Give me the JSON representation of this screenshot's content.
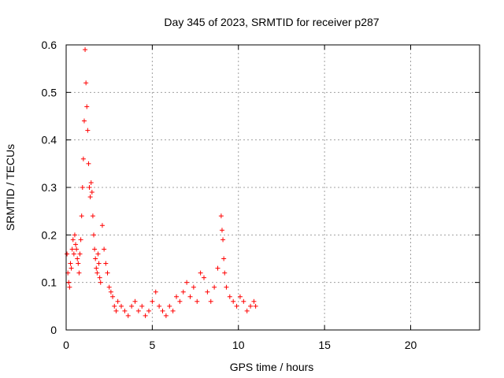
{
  "chart_data": {
    "type": "scatter",
    "title": "Day 345 of 2023, SRMTID for receiver p287",
    "xlabel": "GPS time / hours",
    "ylabel": "SRMTID / TECUs",
    "xlim": [
      0,
      24
    ],
    "ylim": [
      0,
      0.6
    ],
    "xticks": [
      0,
      5,
      10,
      15,
      20
    ],
    "xtick_labels": [
      "0",
      "5",
      "10",
      "15",
      "20"
    ],
    "yticks": [
      0,
      0.1,
      0.2,
      0.3,
      0.4,
      0.5,
      0.6
    ],
    "ytick_labels": [
      "0",
      "0.1",
      "0.2",
      "0.3",
      "0.4",
      "0.5",
      "0.6"
    ],
    "grid": true,
    "marker": "+",
    "series": [
      {
        "name": "SRMTID",
        "color": "#ff0000",
        "x": [
          0.05,
          0.1,
          0.15,
          0.2,
          0.25,
          0.3,
          0.35,
          0.4,
          0.45,
          0.5,
          0.55,
          0.6,
          0.65,
          0.7,
          0.75,
          0.8,
          0.85,
          0.9,
          0.95,
          1.0,
          1.05,
          1.1,
          1.15,
          1.2,
          1.25,
          1.3,
          1.35,
          1.4,
          1.45,
          1.5,
          1.55,
          1.6,
          1.65,
          1.7,
          1.75,
          1.8,
          1.85,
          1.9,
          1.95,
          2.0,
          2.1,
          2.2,
          2.3,
          2.4,
          2.5,
          2.6,
          2.7,
          2.8,
          2.9,
          3.0,
          3.2,
          3.4,
          3.6,
          3.8,
          4.0,
          4.2,
          4.4,
          4.6,
          4.8,
          5.0,
          5.2,
          5.4,
          5.6,
          5.8,
          6.0,
          6.2,
          6.4,
          6.6,
          6.8,
          7.0,
          7.2,
          7.4,
          7.6,
          7.8,
          8.0,
          8.2,
          8.4,
          8.6,
          8.8,
          9.0,
          9.05,
          9.1,
          9.15,
          9.2,
          9.3,
          9.5,
          9.7,
          9.9,
          10.1,
          10.3,
          10.5,
          10.7,
          10.9,
          11.0
        ],
        "y": [
          0.16,
          0.12,
          0.1,
          0.09,
          0.14,
          0.13,
          0.17,
          0.19,
          0.16,
          0.2,
          0.18,
          0.17,
          0.15,
          0.14,
          0.12,
          0.16,
          0.19,
          0.24,
          0.3,
          0.36,
          0.44,
          0.59,
          0.52,
          0.47,
          0.42,
          0.35,
          0.3,
          0.28,
          0.31,
          0.29,
          0.24,
          0.2,
          0.17,
          0.15,
          0.13,
          0.12,
          0.16,
          0.14,
          0.11,
          0.1,
          0.22,
          0.17,
          0.14,
          0.12,
          0.09,
          0.08,
          0.07,
          0.05,
          0.04,
          0.06,
          0.05,
          0.04,
          0.03,
          0.05,
          0.06,
          0.04,
          0.05,
          0.03,
          0.04,
          0.06,
          0.08,
          0.05,
          0.04,
          0.03,
          0.05,
          0.04,
          0.07,
          0.06,
          0.08,
          0.1,
          0.07,
          0.09,
          0.06,
          0.12,
          0.11,
          0.08,
          0.06,
          0.09,
          0.13,
          0.24,
          0.21,
          0.19,
          0.15,
          0.12,
          0.09,
          0.07,
          0.06,
          0.05,
          0.07,
          0.06,
          0.04,
          0.05,
          0.06,
          0.05
        ]
      }
    ]
  }
}
